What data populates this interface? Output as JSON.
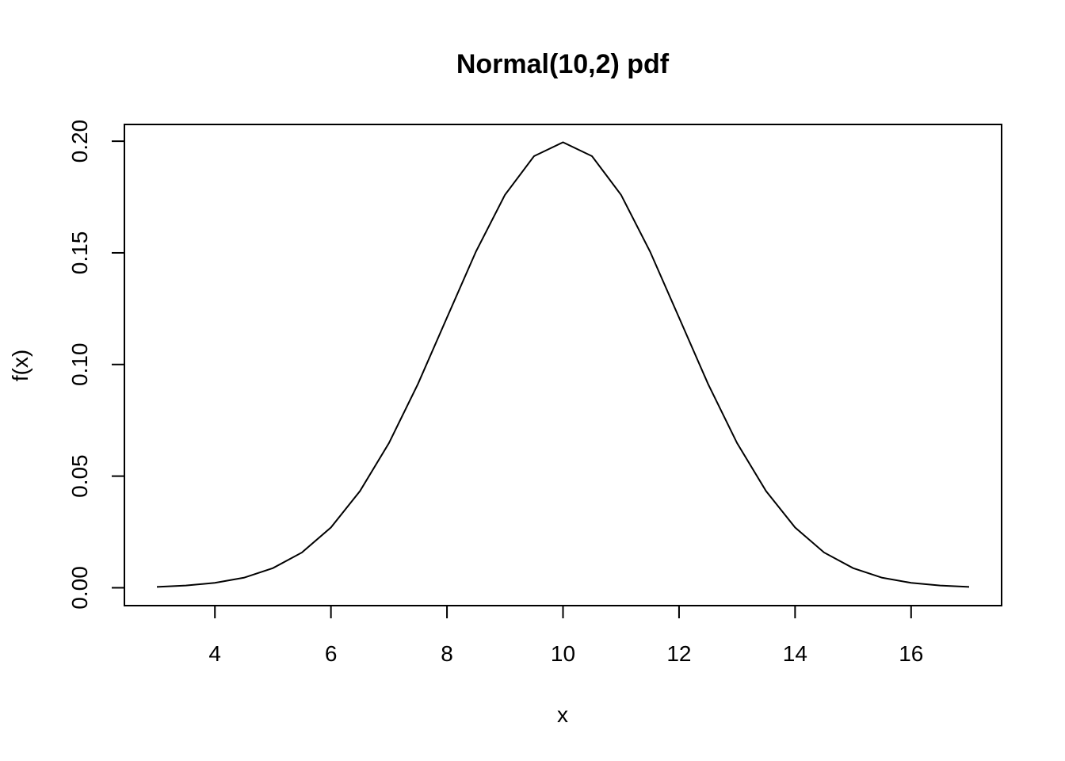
{
  "chart_data": {
    "type": "line",
    "title": "Normal(10,2) pdf",
    "xlabel": "x",
    "ylabel": "f(x)",
    "xlim": [
      2.44,
      17.56
    ],
    "ylim": [
      -0.008,
      0.2075
    ],
    "xticks": [
      4,
      6,
      8,
      10,
      12,
      14,
      16
    ],
    "yticks": [
      0.0,
      0.05,
      0.1,
      0.15,
      0.2
    ],
    "xtick_labels": [
      "4",
      "6",
      "8",
      "10",
      "12",
      "14",
      "16"
    ],
    "ytick_labels": [
      "0.00",
      "0.05",
      "0.10",
      "0.15",
      "0.20"
    ],
    "grid": false,
    "series": [
      {
        "x": [
          3.0,
          3.5,
          4.0,
          4.5,
          5.0,
          5.5,
          6.0,
          6.5,
          7.0,
          7.5,
          8.0,
          8.5,
          9.0,
          9.5,
          10.0,
          10.5,
          11.0,
          11.5,
          12.0,
          12.5,
          13.0,
          13.5,
          14.0,
          14.5,
          15.0,
          15.5,
          16.0,
          16.5,
          17.0
        ],
        "y": [
          0.0004,
          0.001,
          0.0022,
          0.0045,
          0.0088,
          0.0158,
          0.027,
          0.0433,
          0.0648,
          0.0913,
          0.121,
          0.1506,
          0.176,
          0.1933,
          0.1995,
          0.1933,
          0.176,
          0.1506,
          0.121,
          0.0913,
          0.0648,
          0.0433,
          0.027,
          0.0158,
          0.0088,
          0.0045,
          0.0022,
          0.001,
          0.0004
        ]
      }
    ]
  }
}
